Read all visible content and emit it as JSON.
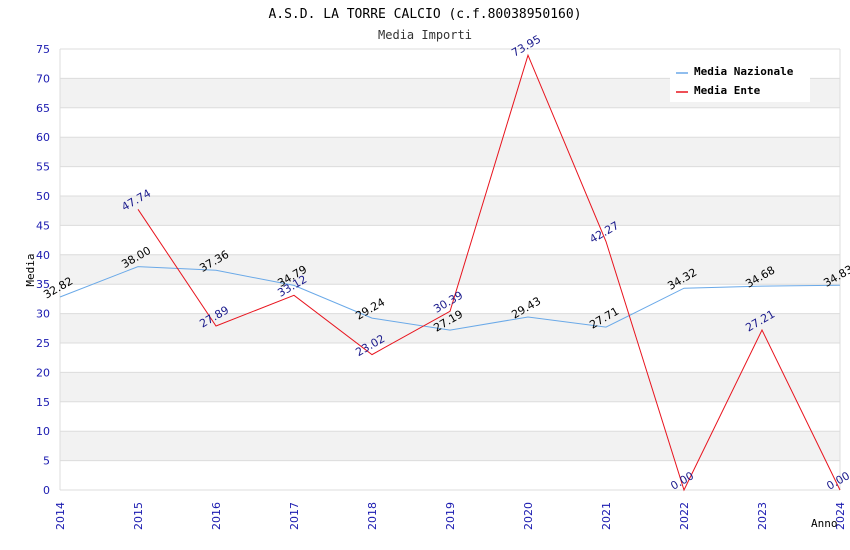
{
  "chart_data": {
    "type": "line",
    "title": "A.S.D. LA TORRE CALCIO (c.f.80038950160)",
    "subtitle": "Media Importi",
    "xlabel": "Anno",
    "ylabel": "Media",
    "x": [
      "2014",
      "2015",
      "2016",
      "2017",
      "2018",
      "2019",
      "2020",
      "2021",
      "2022",
      "2023",
      "2024"
    ],
    "ylim": [
      0,
      75
    ],
    "yticks": [
      "0",
      "5",
      "10",
      "15",
      "20",
      "25",
      "30",
      "35",
      "40",
      "45",
      "50",
      "55",
      "60",
      "65",
      "70",
      "75"
    ],
    "grid": true,
    "legend_position": "top-right",
    "series": [
      {
        "name": "Media Nazionale",
        "color": "#6aa9e8",
        "label_color": "#000000",
        "values": [
          32.82,
          38.0,
          37.36,
          34.79,
          29.24,
          27.19,
          29.43,
          27.71,
          34.32,
          34.68,
          34.83
        ],
        "labels": [
          "32.82",
          "38.00",
          "37.36",
          "34.79",
          "29.24",
          "27.19",
          "29.43",
          "27.71",
          "34.32",
          "34.68",
          "34.83"
        ]
      },
      {
        "name": "Media Ente",
        "color": "#e8141e",
        "label_color": "#1a1a8c",
        "values": [
          null,
          47.74,
          27.89,
          33.12,
          23.02,
          30.39,
          73.95,
          42.27,
          0.0,
          27.21,
          0.0
        ],
        "labels": [
          null,
          "47.74",
          "27.89",
          "33.12",
          "23.02",
          "30.39",
          "73.95",
          "42.27",
          "0.00",
          "27.21",
          "0.00"
        ]
      }
    ]
  }
}
